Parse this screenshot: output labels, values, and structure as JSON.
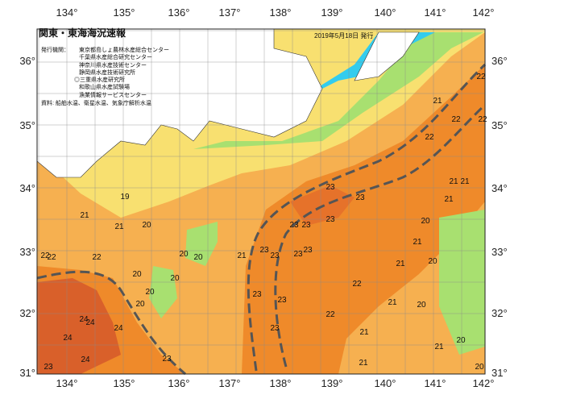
{
  "title": "関東・東海海況速報",
  "issue_date": "2019年5月18日 発行",
  "issuers_label": "発行機関：",
  "issuers": [
    "東京都島しょ農林水産総合センター",
    "千葉県水産総合研究センター",
    "神奈川県水産技術センター",
    "静岡県水産技術研究所",
    "◎三重県水産研究所",
    "和歌山県水産試験場",
    "漁業情報サービスセンター"
  ],
  "source": "資料: 船舶水温、衛星水温、気象庁解析水温",
  "lon_ticks": [
    "134°",
    "135°",
    "136°",
    "137°",
    "138°",
    "139°",
    "140°",
    "141°",
    "142°"
  ],
  "lat_ticks": [
    "36°",
    "35°",
    "34°",
    "33°",
    "32°",
    "31°"
  ],
  "colors": {
    "land": "#ffffff",
    "cold": "#33ccee",
    "green": "#a8e070",
    "yellow": "#f8e070",
    "light_orange": "#f6b050",
    "orange": "#ef8a2a",
    "dark_orange": "#d9602a",
    "current_axis": "#555555"
  },
  "temperature_labels": [
    "22",
    "21",
    "22",
    "22",
    "22",
    "21",
    "21",
    "21",
    "23",
    "23",
    "21",
    "21",
    "20",
    "19",
    "20",
    "21",
    "21",
    "20",
    "21",
    "23",
    "23",
    "23",
    "23",
    "23",
    "23",
    "23",
    "20",
    "20",
    "20",
    "20",
    "20",
    "20",
    "22",
    "21",
    "20",
    "22",
    "23",
    "23",
    "23",
    "21",
    "21",
    "20",
    "21",
    "20",
    "22",
    "22",
    "22",
    "24",
    "24",
    "24",
    "24",
    "24",
    "23",
    "23"
  ]
}
